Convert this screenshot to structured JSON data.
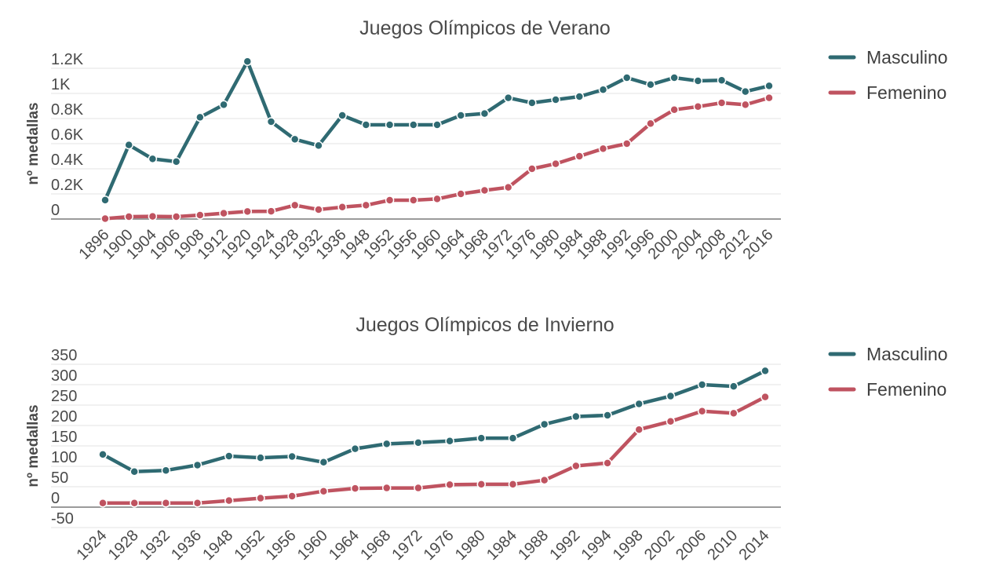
{
  "chart_data": [
    {
      "type": "line",
      "title": "Juegos Olímpicos de Verano",
      "ylabel": "nº medallas",
      "xlabel": "",
      "categories": [
        "1896",
        "1900",
        "1904",
        "1906",
        "1908",
        "1912",
        "1920",
        "1924",
        "1928",
        "1932",
        "1936",
        "1948",
        "1952",
        "1956",
        "1960",
        "1964",
        "1968",
        "1972",
        "1976",
        "1980",
        "1984",
        "1988",
        "1992",
        "1996",
        "2000",
        "2004",
        "2008",
        "2012",
        "2016"
      ],
      "ylim": [
        0,
        1200
      ],
      "y_ticks": [
        0,
        200,
        400,
        600,
        800,
        1000,
        1200
      ],
      "y_tick_labels": [
        "0",
        "0.2K",
        "0.4K",
        "0.6K",
        "0.8K",
        "1K",
        "1.2K"
      ],
      "grid": true,
      "legend": "right",
      "series": [
        {
          "name": "Masculino",
          "color": "#2f6a72",
          "values": [
            151,
            590,
            479,
            457,
            810,
            910,
            1255,
            775,
            635,
            585,
            825,
            750,
            750,
            750,
            750,
            825,
            840,
            965,
            925,
            950,
            975,
            1030,
            1125,
            1070,
            1125,
            1100,
            1105,
            1015,
            1060
          ]
        },
        {
          "name": "Femenino",
          "color": "#bf5360",
          "values": [
            3,
            19,
            21,
            19,
            31,
            46,
            60,
            62,
            110,
            75,
            95,
            110,
            150,
            150,
            160,
            200,
            228,
            252,
            400,
            440,
            500,
            560,
            600,
            760,
            870,
            895,
            925,
            910,
            965
          ]
        }
      ]
    },
    {
      "type": "line",
      "title": "Juegos Olímpicos de Invierno",
      "ylabel": "nº medallas",
      "xlabel": "",
      "categories": [
        "1924",
        "1928",
        "1932",
        "1936",
        "1948",
        "1952",
        "1956",
        "1960",
        "1964",
        "1968",
        "1972",
        "1976",
        "1980",
        "1984",
        "1988",
        "1992",
        "1994",
        "1998",
        "2002",
        "2006",
        "2010",
        "2014"
      ],
      "ylim": [
        -50,
        350
      ],
      "y_ticks": [
        -50,
        0,
        50,
        100,
        150,
        200,
        250,
        300,
        350
      ],
      "y_tick_labels": [
        "-50",
        "0",
        "50",
        "100",
        "150",
        "200",
        "250",
        "300",
        "350"
      ],
      "grid": true,
      "legend": "right",
      "series": [
        {
          "name": "Masculino",
          "color": "#2f6a72",
          "values": [
            129,
            87,
            90,
            103,
            125,
            121,
            124,
            110,
            143,
            155,
            158,
            162,
            169,
            169,
            203,
            222,
            225,
            253,
            272,
            300,
            296,
            334
          ]
        },
        {
          "name": "Femenino",
          "color": "#bf5360",
          "values": [
            10,
            10,
            10,
            10,
            16,
            22,
            27,
            39,
            46,
            47,
            47,
            55,
            56,
            56,
            66,
            101,
            108,
            190,
            210,
            235,
            230,
            270
          ]
        }
      ]
    }
  ]
}
